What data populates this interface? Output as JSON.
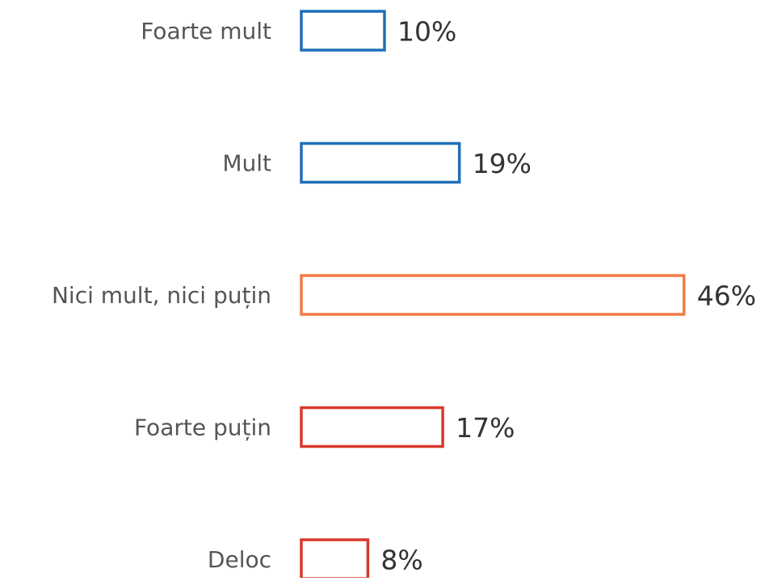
{
  "chart_data": {
    "type": "bar",
    "orientation": "horizontal",
    "categories": [
      "Foarte mult",
      "Mult",
      "Nici mult, nici puțin",
      "Foarte puțin",
      "Deloc"
    ],
    "values": [
      10,
      19,
      46,
      17,
      8
    ],
    "value_labels": [
      "10%",
      "19%",
      "46%",
      "17%",
      "8%"
    ],
    "colors": [
      "#1f6fb8",
      "#1f6fb8",
      "#f47a45",
      "#d8392b",
      "#d8392b"
    ]
  }
}
